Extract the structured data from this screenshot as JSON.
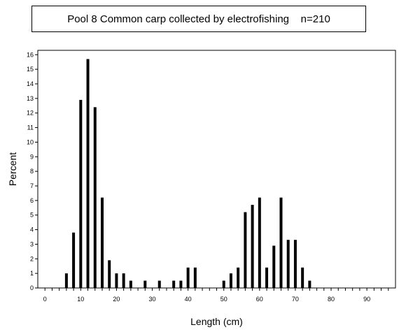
{
  "chart_data": {
    "type": "bar",
    "title": "Pool 8 Common carp collected by electrofishing    n=210",
    "xlabel": "Length (cm)",
    "ylabel": "Percent",
    "xlim": [
      -2,
      98
    ],
    "ylim": [
      0,
      16.3
    ],
    "x_ticks_major": [
      0,
      10,
      20,
      30,
      40,
      50,
      60,
      70,
      80,
      90
    ],
    "y_ticks": [
      0,
      1,
      2,
      3,
      4,
      5,
      6,
      7,
      8,
      9,
      10,
      11,
      12,
      13,
      14,
      15,
      16
    ],
    "grid": false,
    "legend": "none",
    "bar_color": "#000000",
    "x": [
      6,
      8,
      10,
      12,
      14,
      16,
      18,
      20,
      22,
      24,
      28,
      32,
      36,
      38,
      40,
      42,
      50,
      52,
      54,
      56,
      58,
      60,
      62,
      64,
      66,
      68,
      70,
      72,
      74
    ],
    "values": [
      1.0,
      3.8,
      12.9,
      15.7,
      12.4,
      6.2,
      1.9,
      1.0,
      1.0,
      0.5,
      0.5,
      0.5,
      0.5,
      0.5,
      1.4,
      1.4,
      0.5,
      1.0,
      1.4,
      5.2,
      5.7,
      6.2,
      1.4,
      2.9,
      6.2,
      3.3,
      3.3,
      1.4,
      0.5
    ]
  }
}
